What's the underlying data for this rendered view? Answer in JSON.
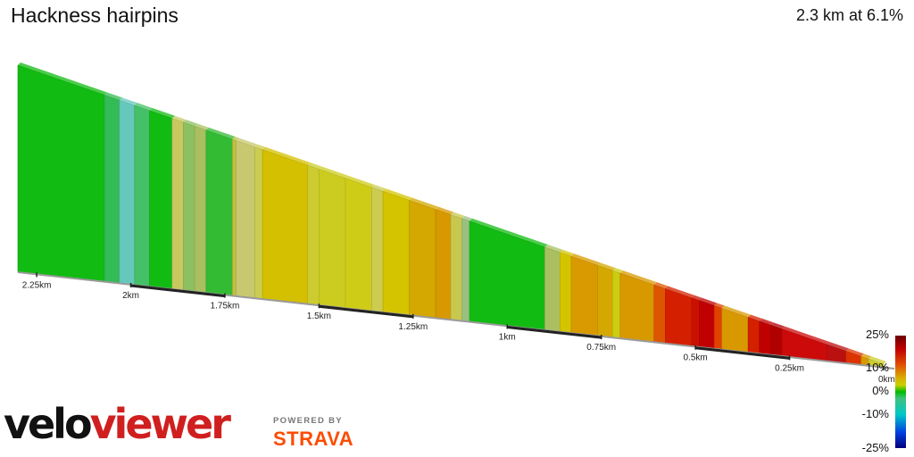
{
  "header": {
    "title": "Hackness hairpins",
    "summary": "2.3 km at 6.1%"
  },
  "chart_data": {
    "type": "area",
    "title": "Hackness hairpins",
    "x_unit": "km",
    "x_direction": "descending-left-to-right",
    "x_ticks": [
      {
        "label": "2.25km",
        "km": 2.25
      },
      {
        "label": "2km",
        "km": 2.0
      },
      {
        "label": "1.75km",
        "km": 1.75
      },
      {
        "label": "1.5km",
        "km": 1.5
      },
      {
        "label": "1.25km",
        "km": 1.25
      },
      {
        "label": "1km",
        "km": 1.0
      },
      {
        "label": "0.75km",
        "km": 0.75
      },
      {
        "label": "0.5km",
        "km": 0.5
      },
      {
        "label": "0.25km",
        "km": 0.25
      },
      {
        "label": "0km",
        "km": 0.0
      }
    ],
    "xlim": [
      2.3,
      0
    ],
    "ylim": [
      0,
      150
    ],
    "segments": [
      {
        "start_km": 2.3,
        "end_km": 2.07,
        "grade": 0.5,
        "color": "#11bb11"
      },
      {
        "start_km": 2.07,
        "end_km": 2.03,
        "grade": 0.5,
        "color": "#33bb55"
      },
      {
        "start_km": 2.03,
        "end_km": 1.99,
        "grade": -2.0,
        "color": "#66c8bb"
      },
      {
        "start_km": 1.99,
        "end_km": 1.95,
        "grade": 0.0,
        "color": "#44c066"
      },
      {
        "start_km": 1.95,
        "end_km": 1.89,
        "grade": 1.0,
        "color": "#11bb11"
      },
      {
        "start_km": 1.89,
        "end_km": 1.86,
        "grade": 4.0,
        "color": "#c8c860"
      },
      {
        "start_km": 1.86,
        "end_km": 1.83,
        "grade": 2.0,
        "color": "#8cc060"
      },
      {
        "start_km": 1.83,
        "end_km": 1.8,
        "grade": 3.0,
        "color": "#aac060"
      },
      {
        "start_km": 1.8,
        "end_km": 1.73,
        "grade": 0.5,
        "color": "#33bb33"
      },
      {
        "start_km": 1.73,
        "end_km": 1.72,
        "grade": 5.0,
        "color": "#c0c040"
      },
      {
        "start_km": 1.72,
        "end_km": 1.67,
        "grade": 4.5,
        "color": "#c8c870"
      },
      {
        "start_km": 1.67,
        "end_km": 1.65,
        "grade": 5.0,
        "color": "#cccc50"
      },
      {
        "start_km": 1.65,
        "end_km": 1.53,
        "grade": 6.5,
        "color": "#d4c000"
      },
      {
        "start_km": 1.53,
        "end_km": 1.5,
        "grade": 6.0,
        "color": "#cccc30"
      },
      {
        "start_km": 1.5,
        "end_km": 1.43,
        "grade": 5.5,
        "color": "#cccc20"
      },
      {
        "start_km": 1.43,
        "end_km": 1.36,
        "grade": 6.0,
        "color": "#cfcc18"
      },
      {
        "start_km": 1.36,
        "end_km": 1.33,
        "grade": 5.0,
        "color": "#cccc50"
      },
      {
        "start_km": 1.33,
        "end_km": 1.26,
        "grade": 6.0,
        "color": "#d4c400"
      },
      {
        "start_km": 1.26,
        "end_km": 1.19,
        "grade": 8.0,
        "color": "#d4a800"
      },
      {
        "start_km": 1.19,
        "end_km": 1.15,
        "grade": 9.0,
        "color": "#d89800"
      },
      {
        "start_km": 1.15,
        "end_km": 1.12,
        "grade": 6.0,
        "color": "#c8c850"
      },
      {
        "start_km": 1.12,
        "end_km": 1.1,
        "grade": 2.0,
        "color": "#99c080"
      },
      {
        "start_km": 1.1,
        "end_km": 0.9,
        "grade": 0.5,
        "color": "#11bb11"
      },
      {
        "start_km": 0.9,
        "end_km": 0.86,
        "grade": 4.0,
        "color": "#aac060"
      },
      {
        "start_km": 0.86,
        "end_km": 0.83,
        "grade": 6.0,
        "color": "#d4c400"
      },
      {
        "start_km": 0.83,
        "end_km": 0.76,
        "grade": 9.0,
        "color": "#d89a00"
      },
      {
        "start_km": 0.76,
        "end_km": 0.72,
        "grade": 8.0,
        "color": "#d4a800"
      },
      {
        "start_km": 0.72,
        "end_km": 0.7,
        "grade": 6.5,
        "color": "#cccc10"
      },
      {
        "start_km": 0.7,
        "end_km": 0.61,
        "grade": 9.0,
        "color": "#d89800"
      },
      {
        "start_km": 0.61,
        "end_km": 0.58,
        "grade": 12.0,
        "color": "#dd5500"
      },
      {
        "start_km": 0.58,
        "end_km": 0.51,
        "grade": 14.0,
        "color": "#d42000"
      },
      {
        "start_km": 0.51,
        "end_km": 0.49,
        "grade": 15.0,
        "color": "#cc1000"
      },
      {
        "start_km": 0.49,
        "end_km": 0.45,
        "grade": 16.0,
        "color": "#c00000"
      },
      {
        "start_km": 0.45,
        "end_km": 0.43,
        "grade": 12.0,
        "color": "#e04000"
      },
      {
        "start_km": 0.43,
        "end_km": 0.36,
        "grade": 9.0,
        "color": "#d89800"
      },
      {
        "start_km": 0.36,
        "end_km": 0.33,
        "grade": 14.0,
        "color": "#d42000"
      },
      {
        "start_km": 0.33,
        "end_km": 0.3,
        "grade": 16.0,
        "color": "#c00000"
      },
      {
        "start_km": 0.3,
        "end_km": 0.27,
        "grade": 18.0,
        "color": "#b00000"
      },
      {
        "start_km": 0.27,
        "end_km": 0.15,
        "grade": 16.0,
        "color": "#cc0a0a"
      },
      {
        "start_km": 0.15,
        "end_km": 0.1,
        "grade": 14.0,
        "color": "#bb1010"
      },
      {
        "start_km": 0.1,
        "end_km": 0.06,
        "grade": 12.0,
        "color": "#dd3300"
      },
      {
        "start_km": 0.06,
        "end_km": 0.04,
        "grade": 9.0,
        "color": "#d89800"
      },
      {
        "start_km": 0.04,
        "end_km": 0.0,
        "grade": 5.0,
        "color": "#cccc30"
      }
    ],
    "legend": {
      "type": "gradient",
      "labels": [
        "25%",
        "10%",
        "0%",
        "-10%",
        "-25%"
      ],
      "placement": "bottom-right"
    }
  },
  "branding": {
    "velo": "velo",
    "viewer": "viewer",
    "powered_by": "POWERED BY",
    "strava": "STRAVA"
  }
}
